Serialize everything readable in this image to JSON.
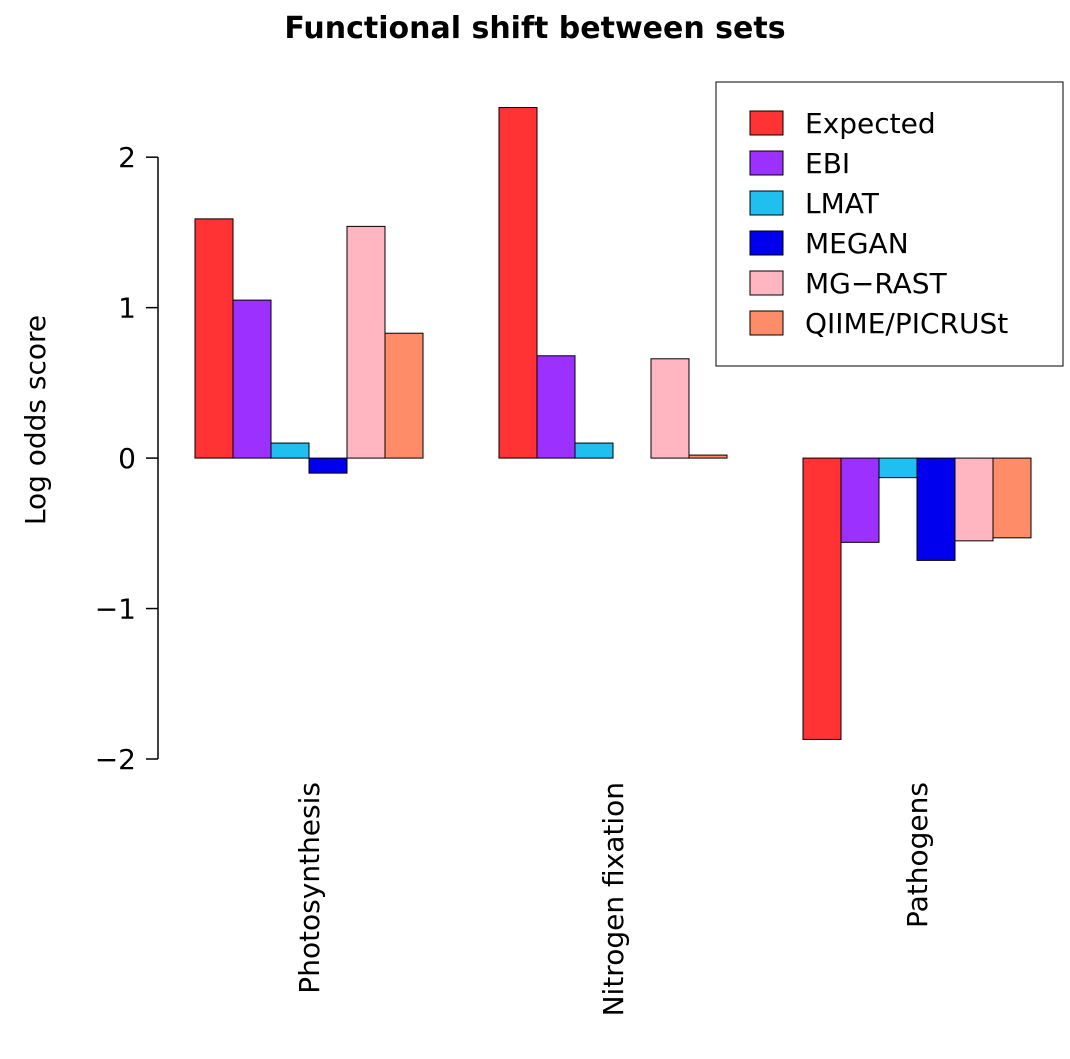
{
  "chart_data": {
    "type": "bar",
    "title": "Functional shift between sets",
    "y_label": "Log odds score",
    "categories": [
      "Photosynthesis",
      "Nitrogen fixation",
      "Pathogens"
    ],
    "series": [
      {
        "name": "Expected",
        "color": "#ff3333",
        "values": [
          1.59,
          2.33,
          -1.87
        ]
      },
      {
        "name": "EBI",
        "color": "#9b30ff",
        "values": [
          1.05,
          0.68,
          -0.56
        ]
      },
      {
        "name": "LMAT",
        "color": "#1fbfef",
        "values": [
          0.1,
          0.1,
          -0.13
        ]
      },
      {
        "name": "MEGAN",
        "color": "#0000ee",
        "values": [
          -0.1,
          0,
          -0.68
        ]
      },
      {
        "name": "MG−RAST",
        "color": "#ffb6c1",
        "values": [
          1.54,
          0.66,
          -0.55
        ]
      },
      {
        "name": "QIIME/PICRUSt",
        "color": "#ff8c69",
        "values": [
          0.83,
          0.02,
          -0.53
        ]
      }
    ],
    "ylim": [
      -2,
      2.4
    ],
    "yticks": [
      {
        "value": -2,
        "label": "−2"
      },
      {
        "value": -1,
        "label": "−1"
      },
      0,
      1,
      2
    ],
    "legend": "topright"
  }
}
